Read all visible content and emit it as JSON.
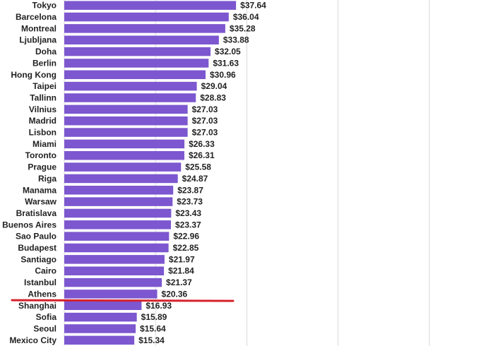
{
  "chart_data": {
    "type": "bar",
    "orientation": "horizontal",
    "categories": [
      "Tokyo",
      "Barcelona",
      "Montreal",
      "Ljubljana",
      "Doha",
      "Berlin",
      "Hong Kong",
      "Taipei",
      "Tallinn",
      "Vilnius",
      "Madrid",
      "Lisbon",
      "Miami",
      "Toronto",
      "Prague",
      "Riga",
      "Manama",
      "Warsaw",
      "Bratislava",
      "Buenos Aires",
      "Sao Paulo",
      "Budapest",
      "Santiago",
      "Cairo",
      "Istanbul",
      "Athens",
      "Shanghai",
      "Sofia",
      "Seoul",
      "Mexico City"
    ],
    "values": [
      37.64,
      36.04,
      35.28,
      33.88,
      32.05,
      31.63,
      30.96,
      29.04,
      28.83,
      27.03,
      27.03,
      27.03,
      26.33,
      26.31,
      25.58,
      24.87,
      23.87,
      23.73,
      23.43,
      23.37,
      22.96,
      22.85,
      21.97,
      21.84,
      21.37,
      20.36,
      16.93,
      15.89,
      15.64,
      15.34
    ],
    "value_labels": [
      "$37.64",
      "$36.04",
      "$35.28",
      "$33.88",
      "$32.05",
      "$31.63",
      "$30.96",
      "$29.04",
      "$28.83",
      "$27.03",
      "$27.03",
      "$27.03",
      "$26.33",
      "$26.31",
      "$25.58",
      "$24.87",
      "$23.87",
      "$23.73",
      "$23.43",
      "$23.37",
      "$22.96",
      "$22.85",
      "$21.97",
      "$21.84",
      "$21.37",
      "$20.36",
      "$16.93",
      "$15.89",
      "$15.64",
      "$15.34"
    ],
    "xlim": [
      0,
      100
    ],
    "gridline_values": [
      0,
      20,
      40,
      60,
      80,
      100
    ],
    "grid": true,
    "bar_color": "#7c57cf",
    "highlight": {
      "category": "Athens",
      "position": "below",
      "color": "#d6222c"
    },
    "title": "",
    "xlabel": "",
    "ylabel": ""
  }
}
